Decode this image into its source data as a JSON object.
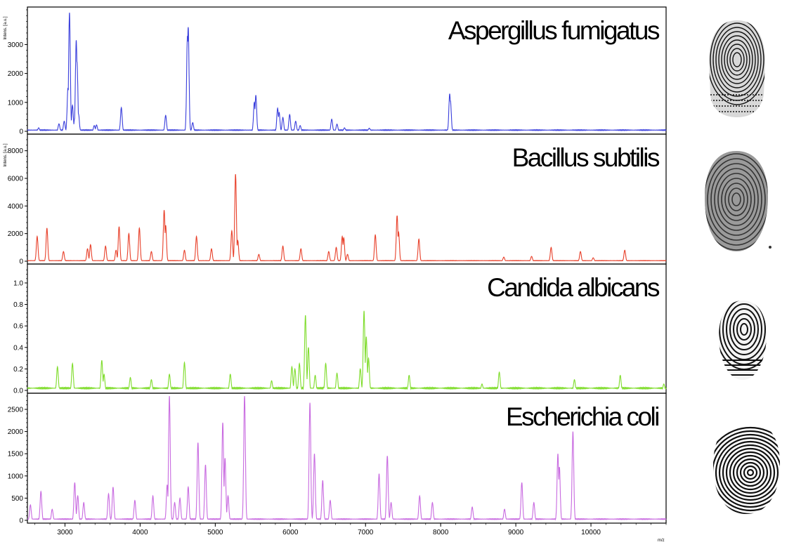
{
  "chart_data": {
    "type": "line",
    "xlabel": "m/z",
    "xlim": [
      2500,
      11000
    ],
    "x_ticks": [
      "3000",
      "4000",
      "5000",
      "6000",
      "7000",
      "8000",
      "9000",
      "10000"
    ],
    "panels": [
      {
        "title": "Aspergillus fumigatus",
        "ylabel": "Intens. [a.u.]",
        "color": "#3a3fdc",
        "ylim": [
          0,
          4200
        ],
        "y_ticks": [
          "0",
          "1000",
          "2000",
          "3000"
        ],
        "baseline": 60,
        "peaks": [
          [
            2650,
            120
          ],
          [
            2920,
            260
          ],
          [
            2990,
            350
          ],
          [
            3040,
            1500
          ],
          [
            3060,
            4100
          ],
          [
            3100,
            900
          ],
          [
            3130,
            450
          ],
          [
            3150,
            3150
          ],
          [
            3160,
            2400
          ],
          [
            3180,
            600
          ],
          [
            3390,
            200
          ],
          [
            3420,
            220
          ],
          [
            3750,
            820
          ],
          [
            4340,
            550
          ],
          [
            4630,
            3300
          ],
          [
            4640,
            3600
          ],
          [
            4700,
            300
          ],
          [
            5520,
            1000
          ],
          [
            5540,
            1250
          ],
          [
            5830,
            800
          ],
          [
            5850,
            650
          ],
          [
            5900,
            480
          ],
          [
            5990,
            580
          ],
          [
            6070,
            350
          ],
          [
            6130,
            200
          ],
          [
            6550,
            420
          ],
          [
            6620,
            250
          ],
          [
            6720,
            120
          ],
          [
            7050,
            110
          ],
          [
            8120,
            1300
          ],
          [
            8130,
            1050
          ]
        ]
      },
      {
        "title": "Bacillus subtilis",
        "ylabel": "Intens. [a.u.]",
        "color": "#e8402a",
        "ylim": [
          0,
          9000
        ],
        "y_ticks": [
          "0",
          "2000",
          "4000",
          "6000",
          "8000"
        ],
        "baseline": 60,
        "peaks": [
          [
            2630,
            1800
          ],
          [
            2760,
            2400
          ],
          [
            2980,
            700
          ],
          [
            3300,
            900
          ],
          [
            3340,
            1200
          ],
          [
            3540,
            1100
          ],
          [
            3680,
            800
          ],
          [
            3720,
            2500
          ],
          [
            3850,
            2000
          ],
          [
            3990,
            2400
          ],
          [
            4150,
            700
          ],
          [
            4320,
            3700
          ],
          [
            4340,
            2600
          ],
          [
            4590,
            800
          ],
          [
            4750,
            1800
          ],
          [
            4950,
            900
          ],
          [
            5220,
            2200
          ],
          [
            5270,
            6300
          ],
          [
            5300,
            1500
          ],
          [
            5580,
            500
          ],
          [
            5900,
            1100
          ],
          [
            6140,
            900
          ],
          [
            6510,
            700
          ],
          [
            6610,
            1000
          ],
          [
            6690,
            1800
          ],
          [
            6710,
            1700
          ],
          [
            6760,
            500
          ],
          [
            7130,
            1900
          ],
          [
            7420,
            3300
          ],
          [
            7440,
            2100
          ],
          [
            7710,
            1600
          ],
          [
            8840,
            300
          ],
          [
            9210,
            350
          ],
          [
            9470,
            1000
          ],
          [
            9860,
            700
          ],
          [
            10030,
            250
          ],
          [
            10450,
            800
          ]
        ]
      },
      {
        "title": "Candida albicans",
        "ylabel": "",
        "color": "#7edc2a",
        "ylim": [
          0,
          1.15
        ],
        "y_ticks": [
          "0.0",
          "0.2",
          "0.4",
          "0.6",
          "0.8",
          "1.0"
        ],
        "baseline": 0.03,
        "peaks": [
          [
            2900,
            0.22
          ],
          [
            3100,
            0.25
          ],
          [
            3490,
            0.28
          ],
          [
            3520,
            0.15
          ],
          [
            3870,
            0.12
          ],
          [
            4150,
            0.1
          ],
          [
            4390,
            0.15
          ],
          [
            4590,
            0.26
          ],
          [
            5200,
            0.15
          ],
          [
            5750,
            0.09
          ],
          [
            6020,
            0.22
          ],
          [
            6060,
            0.2
          ],
          [
            6120,
            0.25
          ],
          [
            6200,
            0.7
          ],
          [
            6240,
            0.4
          ],
          [
            6330,
            0.14
          ],
          [
            6470,
            0.25
          ],
          [
            6620,
            0.16
          ],
          [
            6930,
            0.2
          ],
          [
            6980,
            0.74
          ],
          [
            7010,
            0.5
          ],
          [
            7040,
            0.3
          ],
          [
            7580,
            0.14
          ],
          [
            8550,
            0.06
          ],
          [
            8780,
            0.17
          ],
          [
            9780,
            0.1
          ],
          [
            10390,
            0.14
          ],
          [
            10970,
            0.06
          ]
        ]
      },
      {
        "title": "Escherichia coli",
        "ylabel": "",
        "color": "#c86ae0",
        "ylim": [
          0,
          2800
        ],
        "y_ticks": [
          "0",
          "500",
          "1000",
          "1500",
          "2000",
          "2500"
        ],
        "baseline": 40,
        "peaks": [
          [
            2540,
            350
          ],
          [
            2680,
            650
          ],
          [
            2830,
            250
          ],
          [
            3130,
            850
          ],
          [
            3170,
            550
          ],
          [
            3250,
            400
          ],
          [
            3580,
            600
          ],
          [
            3640,
            750
          ],
          [
            3930,
            450
          ],
          [
            4170,
            550
          ],
          [
            4360,
            800
          ],
          [
            4390,
            2800
          ],
          [
            4460,
            400
          ],
          [
            4530,
            500
          ],
          [
            4640,
            750
          ],
          [
            4770,
            1750
          ],
          [
            4870,
            1250
          ],
          [
            5100,
            2200
          ],
          [
            5130,
            1400
          ],
          [
            5170,
            550
          ],
          [
            5390,
            2800
          ],
          [
            6260,
            2650
          ],
          [
            6320,
            1500
          ],
          [
            6430,
            900
          ],
          [
            6530,
            450
          ],
          [
            7180,
            1050
          ],
          [
            7290,
            1450
          ],
          [
            7340,
            400
          ],
          [
            7720,
            550
          ],
          [
            7890,
            400
          ],
          [
            8420,
            300
          ],
          [
            8850,
            250
          ],
          [
            9080,
            850
          ],
          [
            9240,
            400
          ],
          [
            9560,
            1500
          ],
          [
            9580,
            1200
          ],
          [
            9760,
            2000
          ]
        ]
      }
    ]
  }
}
